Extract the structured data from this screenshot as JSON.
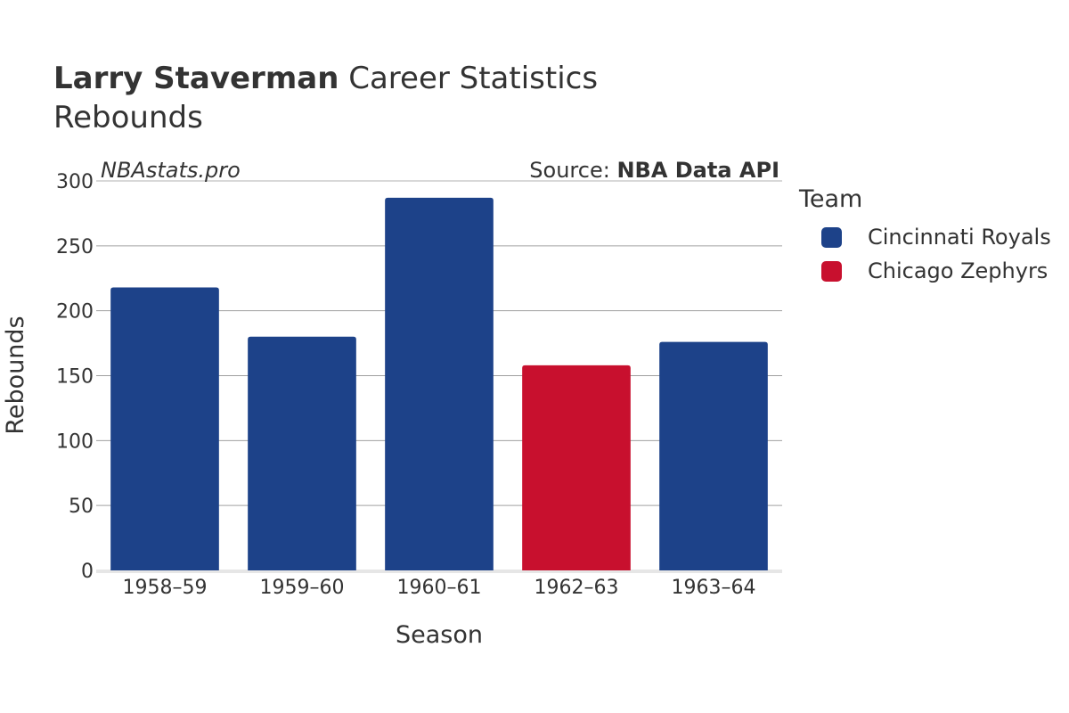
{
  "header": {
    "title_bold": "Larry Staverman",
    "title_rest": " Career Statistics",
    "subtitle": "Rebounds"
  },
  "watermark": "NBAstats.pro",
  "source": {
    "label": "Source: ",
    "value": "NBA Data API"
  },
  "legend": {
    "title": "Team",
    "items": [
      {
        "label": "Cincinnati Royals",
        "color": "#1d4289"
      },
      {
        "label": "Chicago Zephyrs",
        "color": "#c8102e"
      }
    ]
  },
  "chart_data": {
    "type": "bar",
    "title": "Larry Staverman Career Statistics",
    "subtitle": "Rebounds",
    "xlabel": "Season",
    "ylabel": "Rebounds",
    "ylim": [
      0,
      300
    ],
    "yticks": [
      0,
      50,
      100,
      150,
      200,
      250,
      300
    ],
    "categories": [
      "1958–59",
      "1959–60",
      "1960–61",
      "1962–63",
      "1963–64"
    ],
    "values": [
      218,
      180,
      287,
      158,
      176
    ],
    "teams": [
      "Cincinnati Royals",
      "Cincinnati Royals",
      "Cincinnati Royals",
      "Chicago Zephyrs",
      "Cincinnati Royals"
    ],
    "colors": [
      "#1d4289",
      "#1d4289",
      "#1d4289",
      "#c8102e",
      "#1d4289"
    ],
    "grid": true,
    "legend_position": "right"
  }
}
